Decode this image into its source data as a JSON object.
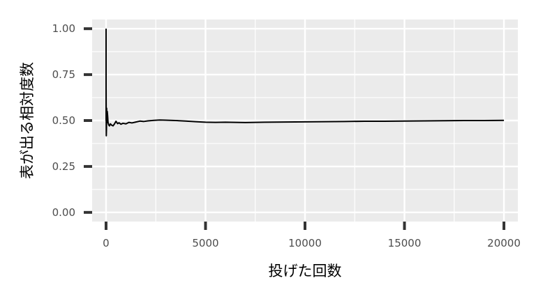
{
  "chart_data": {
    "type": "line",
    "title": "",
    "xlabel": "投げた回数",
    "ylabel": "表が出る相対度数",
    "xlim": [
      -700,
      20700
    ],
    "ylim": [
      -0.05,
      1.05
    ],
    "x_ticks": [
      0,
      5000,
      10000,
      15000,
      20000
    ],
    "x_tick_labels": [
      "0",
      "5000",
      "10000",
      "15000",
      "20000"
    ],
    "y_ticks": [
      0.0,
      0.25,
      0.5,
      0.75,
      1.0
    ],
    "y_tick_labels": [
      "0.00",
      "0.25",
      "0.50",
      "0.75",
      "1.00"
    ],
    "grid": true,
    "background": "#ebebeb",
    "grid_color": "#ffffff",
    "line_color": "#000000",
    "series": [
      {
        "x": [
          1,
          2,
          3,
          5,
          8,
          12,
          20,
          30,
          45,
          60,
          80,
          100,
          130,
          170,
          220,
          280,
          350,
          420,
          500,
          580,
          650,
          750,
          850,
          1000,
          1150,
          1300,
          1500,
          1700,
          1900,
          2100,
          2400,
          2700,
          3000,
          3500,
          4000,
          4500,
          5000,
          5500,
          6000,
          6500,
          7000,
          7500,
          8000,
          9000,
          10000,
          11000,
          12000,
          13000,
          14000,
          15000,
          16000,
          17000,
          18000,
          19000,
          20000
        ],
        "y": [
          1.0,
          0.5,
          0.667,
          0.6,
          0.5,
          0.417,
          0.45,
          0.567,
          0.489,
          0.55,
          0.525,
          0.49,
          0.477,
          0.471,
          0.482,
          0.475,
          0.471,
          0.481,
          0.496,
          0.483,
          0.488,
          0.48,
          0.485,
          0.482,
          0.49,
          0.487,
          0.492,
          0.497,
          0.495,
          0.498,
          0.501,
          0.503,
          0.502,
          0.5,
          0.497,
          0.494,
          0.491,
          0.49,
          0.491,
          0.49,
          0.489,
          0.49,
          0.491,
          0.492,
          0.493,
          0.494,
          0.495,
          0.496,
          0.496,
          0.497,
          0.498,
          0.499,
          0.5,
          0.5,
          0.501
        ]
      }
    ]
  }
}
